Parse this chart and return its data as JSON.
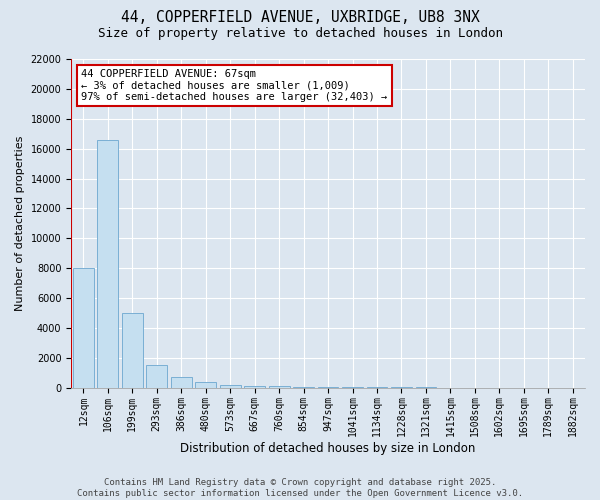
{
  "title_line1": "44, COPPERFIELD AVENUE, UXBRIDGE, UB8 3NX",
  "title_line2": "Size of property relative to detached houses in London",
  "xlabel": "Distribution of detached houses by size in London",
  "ylabel": "Number of detached properties",
  "annotation_title": "44 COPPERFIELD AVENUE: 67sqm",
  "annotation_line2": "← 3% of detached houses are smaller (1,009)",
  "annotation_line3": "97% of semi-detached houses are larger (32,403) →",
  "footer_line1": "Contains HM Land Registry data © Crown copyright and database right 2025.",
  "footer_line2": "Contains public sector information licensed under the Open Government Licence v3.0.",
  "bar_color": "#c5dff0",
  "bar_edge_color": "#7aafd4",
  "background_color": "#dce6f0",
  "grid_color": "#ffffff",
  "vline_color": "#cc0000",
  "annotation_box_facecolor": "#ffffff",
  "annotation_box_edgecolor": "#cc0000",
  "categories": [
    "12sqm",
    "106sqm",
    "199sqm",
    "293sqm",
    "386sqm",
    "480sqm",
    "573sqm",
    "667sqm",
    "760sqm",
    "854sqm",
    "947sqm",
    "1041sqm",
    "1134sqm",
    "1228sqm",
    "1321sqm",
    "1415sqm",
    "1508sqm",
    "1602sqm",
    "1695sqm",
    "1789sqm",
    "1882sqm"
  ],
  "values": [
    8000,
    16600,
    5000,
    1500,
    700,
    350,
    180,
    120,
    90,
    60,
    45,
    35,
    25,
    20,
    15,
    12,
    9,
    7,
    5,
    4,
    3
  ],
  "vline_x": -0.5,
  "ylim": [
    0,
    22000
  ],
  "yticks": [
    0,
    2000,
    4000,
    6000,
    8000,
    10000,
    12000,
    14000,
    16000,
    18000,
    20000,
    22000
  ],
  "title_fontsize": 10.5,
  "subtitle_fontsize": 9,
  "ylabel_fontsize": 8,
  "xlabel_fontsize": 8.5,
  "tick_fontsize": 7,
  "footer_fontsize": 6.5,
  "annotation_fontsize": 7.5
}
